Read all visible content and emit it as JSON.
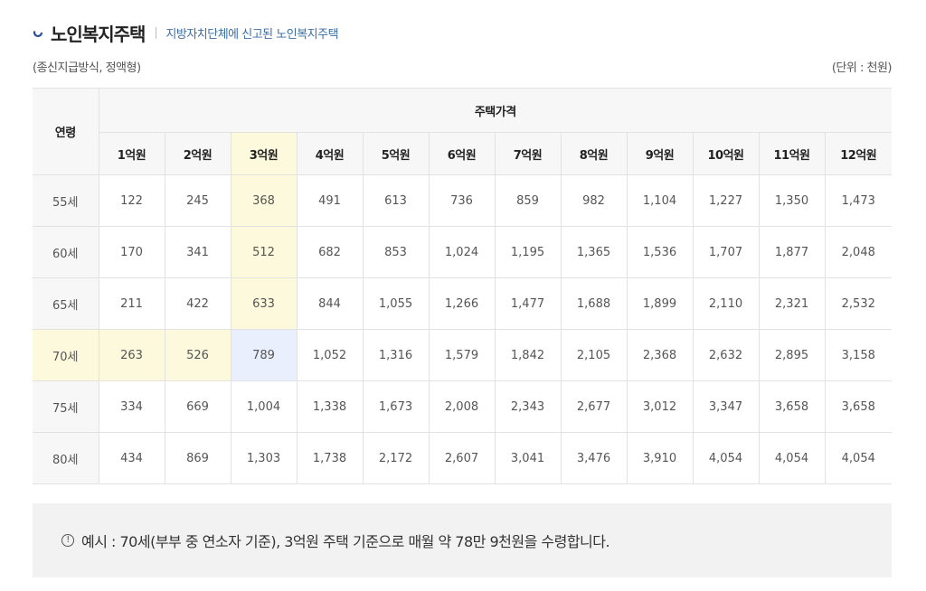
{
  "header": {
    "title": "노인복지주택",
    "subtitle": "지방자치단체에 신고된 노인복지주택"
  },
  "meta": {
    "left": "(종신지급방식, 정액형)",
    "right": "(단위 : 천원)"
  },
  "table": {
    "age_header": "연령",
    "price_header": "주택가격",
    "columns": [
      "1억원",
      "2억원",
      "3억원",
      "4억원",
      "5억원",
      "6억원",
      "7억원",
      "8억원",
      "9억원",
      "10억원",
      "11억원",
      "12억원"
    ],
    "rows": [
      {
        "age": "55세",
        "values": [
          "122",
          "245",
          "368",
          "491",
          "613",
          "736",
          "859",
          "982",
          "1,104",
          "1,227",
          "1,350",
          "1,473"
        ]
      },
      {
        "age": "60세",
        "values": [
          "170",
          "341",
          "512",
          "682",
          "853",
          "1,024",
          "1,195",
          "1,365",
          "1,536",
          "1,707",
          "1,877",
          "2,048"
        ]
      },
      {
        "age": "65세",
        "values": [
          "211",
          "422",
          "633",
          "844",
          "1,055",
          "1,266",
          "1,477",
          "1,688",
          "1,899",
          "2,110",
          "2,321",
          "2,532"
        ]
      },
      {
        "age": "70세",
        "values": [
          "263",
          "526",
          "789",
          "1,052",
          "1,316",
          "1,579",
          "1,842",
          "2,105",
          "2,368",
          "2,632",
          "2,895",
          "3,158"
        ]
      },
      {
        "age": "75세",
        "values": [
          "334",
          "669",
          "1,004",
          "1,338",
          "1,673",
          "2,008",
          "2,343",
          "2,677",
          "3,012",
          "3,347",
          "3,658",
          "3,658"
        ]
      },
      {
        "age": "80세",
        "values": [
          "434",
          "869",
          "1,303",
          "1,738",
          "2,172",
          "2,607",
          "3,041",
          "3,476",
          "3,910",
          "4,054",
          "4,054",
          "4,054"
        ]
      }
    ]
  },
  "note": {
    "icon": "!",
    "text": "예시 : 70세(부부 중 연소자 기준), 3억원 주택 기준으로 매월 약 78만 9천원을 수령합니다."
  },
  "colors": {
    "highlight_yellow": "#fdf9dc",
    "highlight_blue": "#e9effc",
    "subtitle_blue": "#3a6ea5"
  }
}
